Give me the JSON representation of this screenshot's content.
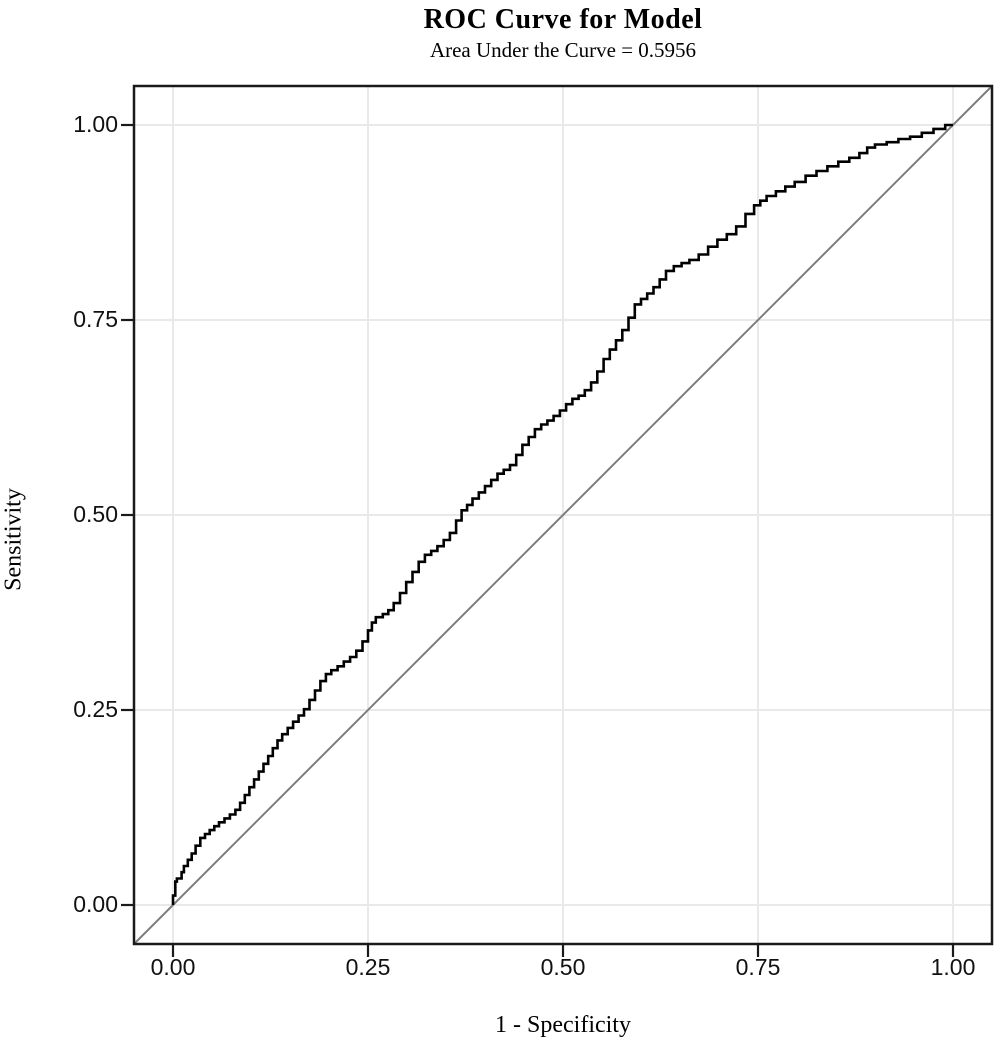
{
  "chart_data": {
    "type": "line",
    "title": "ROC Curve for Model",
    "subtitle": "Area Under the Curve = 0.5956",
    "auc": 0.5956,
    "xlabel": "1 - Specificity",
    "ylabel": "Sensitivity",
    "xlim": [
      -0.05,
      1.05
    ],
    "ylim": [
      -0.05,
      1.05
    ],
    "grid": true,
    "legend": "none",
    "x_ticks": [
      0.0,
      0.25,
      0.5,
      0.75,
      1.0
    ],
    "x_tick_labels": [
      "0.00",
      "0.25",
      "0.50",
      "0.75",
      "1.00"
    ],
    "y_ticks": [
      0.0,
      0.25,
      0.5,
      0.75,
      1.0
    ],
    "y_tick_labels": [
      "0.00",
      "0.25",
      "0.50",
      "0.75",
      "1.00"
    ],
    "colors": {
      "curve": "#000000",
      "diagonal": "#7d7d7d",
      "grid": "#e9e9e9",
      "frame": "#1a1a1a",
      "background": "#ffffff"
    },
    "series": [
      {
        "name": "roc-step-curve",
        "style": "step",
        "points": [
          [
            0.0,
            0.0
          ],
          [
            0.003,
            0.012
          ],
          [
            0.005,
            0.03
          ],
          [
            0.011,
            0.034
          ],
          [
            0.014,
            0.042
          ],
          [
            0.019,
            0.05
          ],
          [
            0.024,
            0.058
          ],
          [
            0.029,
            0.066
          ],
          [
            0.035,
            0.076
          ],
          [
            0.041,
            0.086
          ],
          [
            0.047,
            0.091
          ],
          [
            0.053,
            0.096
          ],
          [
            0.059,
            0.101
          ],
          [
            0.066,
            0.106
          ],
          [
            0.073,
            0.111
          ],
          [
            0.08,
            0.116
          ],
          [
            0.086,
            0.122
          ],
          [
            0.092,
            0.131
          ],
          [
            0.098,
            0.141
          ],
          [
            0.104,
            0.151
          ],
          [
            0.11,
            0.161
          ],
          [
            0.116,
            0.171
          ],
          [
            0.122,
            0.181
          ],
          [
            0.128,
            0.191
          ],
          [
            0.134,
            0.201
          ],
          [
            0.14,
            0.211
          ],
          [
            0.147,
            0.219
          ],
          [
            0.154,
            0.227
          ],
          [
            0.161,
            0.235
          ],
          [
            0.168,
            0.243
          ],
          [
            0.175,
            0.251
          ],
          [
            0.182,
            0.263
          ],
          [
            0.189,
            0.275
          ],
          [
            0.196,
            0.287
          ],
          [
            0.203,
            0.296
          ],
          [
            0.211,
            0.301
          ],
          [
            0.219,
            0.306
          ],
          [
            0.227,
            0.312
          ],
          [
            0.235,
            0.318
          ],
          [
            0.243,
            0.326
          ],
          [
            0.25,
            0.338
          ],
          [
            0.255,
            0.352
          ],
          [
            0.26,
            0.362
          ],
          [
            0.269,
            0.369
          ],
          [
            0.276,
            0.373
          ],
          [
            0.283,
            0.378
          ],
          [
            0.291,
            0.387
          ],
          [
            0.299,
            0.4
          ],
          [
            0.307,
            0.414
          ],
          [
            0.315,
            0.427
          ],
          [
            0.323,
            0.44
          ],
          [
            0.331,
            0.449
          ],
          [
            0.339,
            0.454
          ],
          [
            0.347,
            0.46
          ],
          [
            0.355,
            0.468
          ],
          [
            0.363,
            0.477
          ],
          [
            0.37,
            0.493
          ],
          [
            0.377,
            0.506
          ],
          [
            0.384,
            0.513
          ],
          [
            0.392,
            0.521
          ],
          [
            0.4,
            0.529
          ],
          [
            0.408,
            0.537
          ],
          [
            0.416,
            0.545
          ],
          [
            0.424,
            0.553
          ],
          [
            0.432,
            0.558
          ],
          [
            0.44,
            0.564
          ],
          [
            0.448,
            0.577
          ],
          [
            0.456,
            0.59
          ],
          [
            0.464,
            0.6
          ],
          [
            0.472,
            0.61
          ],
          [
            0.48,
            0.616
          ],
          [
            0.488,
            0.621
          ],
          [
            0.496,
            0.627
          ],
          [
            0.504,
            0.634
          ],
          [
            0.512,
            0.642
          ],
          [
            0.52,
            0.649
          ],
          [
            0.528,
            0.653
          ],
          [
            0.536,
            0.66
          ],
          [
            0.544,
            0.67
          ],
          [
            0.552,
            0.684
          ],
          [
            0.56,
            0.7
          ],
          [
            0.568,
            0.712
          ],
          [
            0.576,
            0.724
          ],
          [
            0.584,
            0.737
          ],
          [
            0.592,
            0.753
          ],
          [
            0.6,
            0.77
          ],
          [
            0.608,
            0.777
          ],
          [
            0.616,
            0.784
          ],
          [
            0.624,
            0.792
          ],
          [
            0.632,
            0.802
          ],
          [
            0.642,
            0.813
          ],
          [
            0.652,
            0.819
          ],
          [
            0.662,
            0.823
          ],
          [
            0.674,
            0.827
          ],
          [
            0.686,
            0.834
          ],
          [
            0.698,
            0.844
          ],
          [
            0.71,
            0.853
          ],
          [
            0.722,
            0.86
          ],
          [
            0.734,
            0.87
          ],
          [
            0.745,
            0.886
          ],
          [
            0.753,
            0.897
          ],
          [
            0.761,
            0.903
          ],
          [
            0.773,
            0.909
          ],
          [
            0.785,
            0.915
          ],
          [
            0.797,
            0.921
          ],
          [
            0.811,
            0.927
          ],
          [
            0.825,
            0.935
          ],
          [
            0.839,
            0.941
          ],
          [
            0.853,
            0.947
          ],
          [
            0.867,
            0.953
          ],
          [
            0.88,
            0.958
          ],
          [
            0.89,
            0.964
          ],
          [
            0.9,
            0.971
          ],
          [
            0.915,
            0.975
          ],
          [
            0.93,
            0.978
          ],
          [
            0.945,
            0.982
          ],
          [
            0.96,
            0.985
          ],
          [
            0.975,
            0.99
          ],
          [
            0.99,
            0.995
          ],
          [
            1.0,
            1.0
          ]
        ]
      },
      {
        "name": "reference-diagonal",
        "style": "line",
        "points": [
          [
            -0.05,
            -0.05
          ],
          [
            1.05,
            1.05
          ]
        ]
      }
    ]
  }
}
